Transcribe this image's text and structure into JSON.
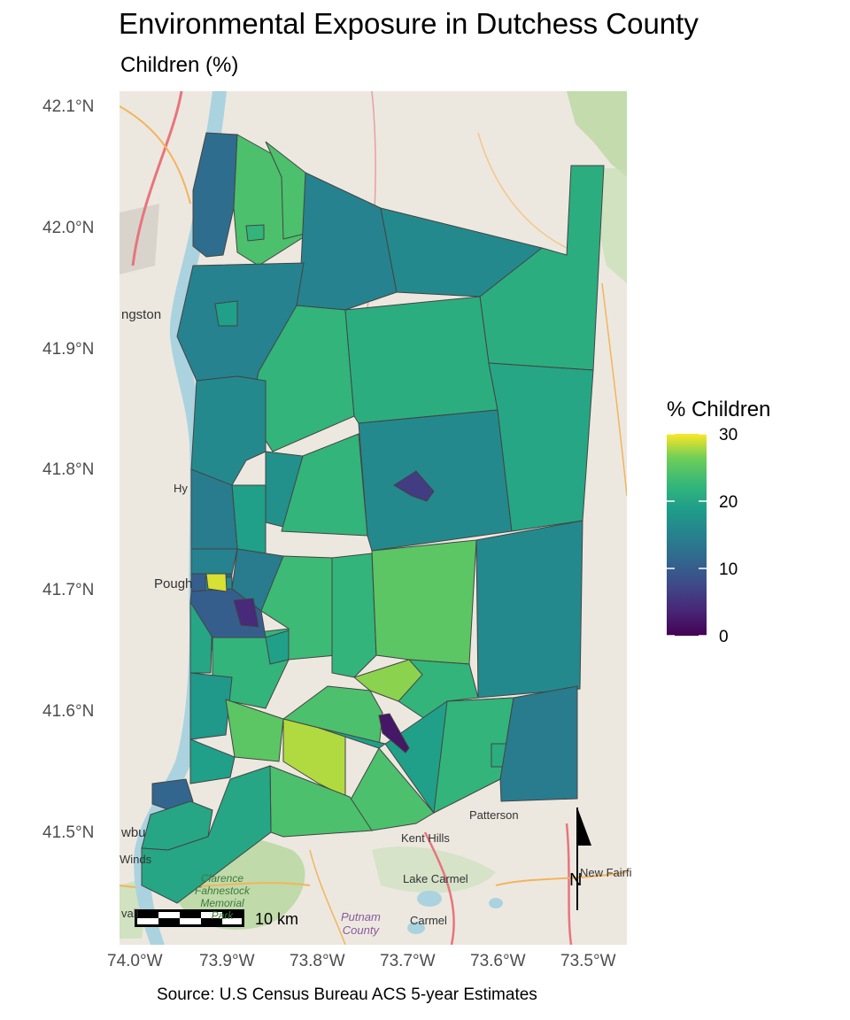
{
  "title": "Environmental Exposure in Dutchess County",
  "subtitle": "Children (%)",
  "caption": "Source: U.S Census Bureau ACS 5-year Estimates",
  "axes": {
    "y_ticks": [
      "42.1°N",
      "42.0°N",
      "41.9°N",
      "41.8°N",
      "41.7°N",
      "41.6°N",
      "41.5°N"
    ],
    "x_ticks": [
      "74.0°W",
      "73.9°W",
      "73.8°W",
      "73.7°W",
      "73.6°W",
      "73.5°W"
    ]
  },
  "legend": {
    "title": "% Children",
    "labels": [
      "30",
      "20",
      "10",
      "0"
    ],
    "range": [
      0,
      30
    ],
    "palette": "viridis"
  },
  "scale_bar": {
    "label": "10 km"
  },
  "north_arrow": {
    "label": "N"
  },
  "basemap_labels": {
    "kingston": "ngston",
    "hyde_park": "Hy",
    "poughkeepsie": "Pough",
    "newburgh": "wbu",
    "windsor": "Winds",
    "wall": "vall",
    "patterson": "Patterson",
    "kent_hills": "Kent Hills",
    "lake_carmel": "Lake Carmel",
    "carmel": "Carmel",
    "new_fairfield": "New Fairfi",
    "clarence_fahnestock": "Clarence\nFahnestock\nMemorial\nPark",
    "putnam_county": "Putnam\nCounty"
  },
  "colors": {
    "background": "#ffffff",
    "basemap_land": "#ece8e0",
    "river": "#aad3df",
    "park_green": "#c4dfb0",
    "tract_border": "#444444"
  },
  "chart_data": {
    "type": "choropleth",
    "title": "Environmental Exposure in Dutchess County",
    "subtitle": "Children (%)",
    "fill_variable": "% Children",
    "lon_range": [
      -74.0,
      -73.5
    ],
    "lat_range": [
      41.5,
      42.1
    ],
    "tract_values_pct": [
      12,
      24,
      24,
      22,
      15,
      16,
      21,
      15,
      19,
      22,
      21,
      16,
      16,
      20,
      17,
      22,
      19,
      14,
      15,
      10,
      14,
      23,
      22,
      25,
      22,
      27,
      24,
      16,
      16,
      21,
      20,
      22,
      19,
      18,
      25,
      28,
      19,
      24,
      24,
      22,
      21,
      19,
      14,
      10,
      11,
      20,
      2,
      6,
      4,
      29,
      20
    ]
  }
}
